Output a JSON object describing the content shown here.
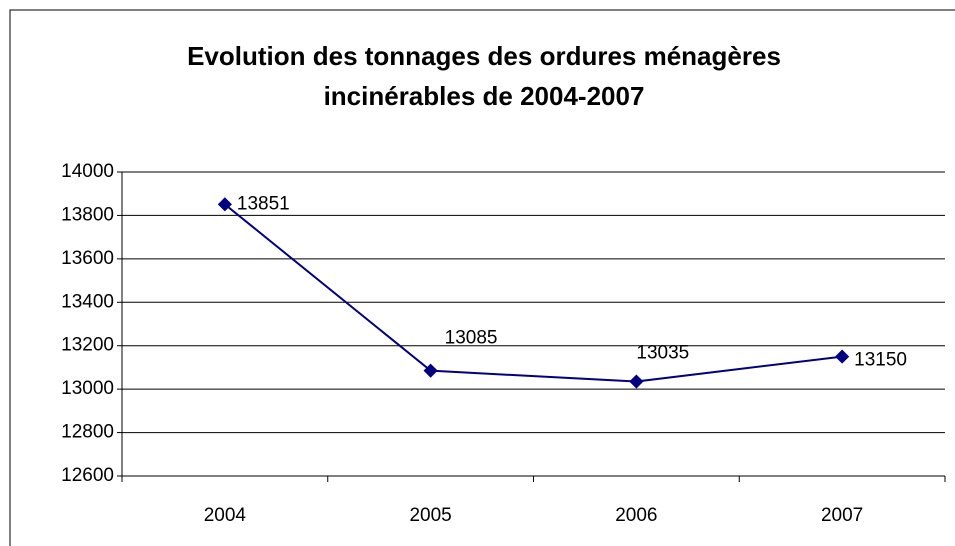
{
  "chart_data": {
    "type": "line",
    "title": [
      "Evolution des tonnages des ordures ménagères",
      "incinérables de 2004-2007"
    ],
    "categories": [
      "2004",
      "2005",
      "2006",
      "2007"
    ],
    "values": [
      13851,
      13085,
      13035,
      13150
    ],
    "color": "#000080",
    "ylim": [
      12600,
      14000
    ],
    "yticks": [
      12600,
      12800,
      13000,
      13200,
      13400,
      13600,
      13800,
      14000
    ],
    "grid": true
  }
}
